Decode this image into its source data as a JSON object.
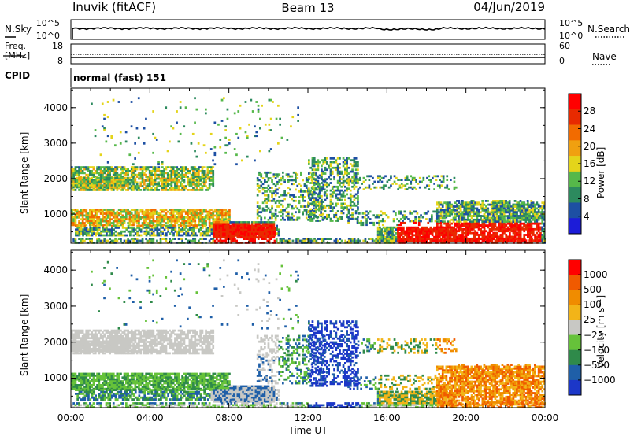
{
  "header": {
    "station": "Inuvik (fitACF)",
    "beam": "Beam 13",
    "date": "04/Jun/2019"
  },
  "nsky_panel": {
    "left_label": "N.Sky",
    "left_ticks": [
      "10^5",
      "10^0"
    ],
    "right_label": "N.Search",
    "right_ticks": [
      "10^5",
      "10^0"
    ]
  },
  "freq_panel": {
    "left_label_1": "Freq.",
    "left_label_2": "[MHz]",
    "left_ticks": [
      "18",
      "8"
    ],
    "right_label": "Nave",
    "right_ticks": [
      "60",
      "0"
    ]
  },
  "cpid": {
    "label": "CPID",
    "value": "normal (fast) 151"
  },
  "colors": {
    "power_scale": [
      "#1c1cd8",
      "#1d4fa3",
      "#2c8a5e",
      "#56b84a",
      "#e4d41a",
      "#f0a010",
      "#f26b00",
      "#e82a00",
      "#ff0000"
    ],
    "velocity_scale": [
      "#1c37c8",
      "#1f5fa8",
      "#2f8a4a",
      "#66c23a",
      "#c8c8c4",
      "#f2b418",
      "#f08c00",
      "#f05a00",
      "#ff0000"
    ]
  },
  "chart_data": [
    {
      "type": "heatmap",
      "title": "",
      "ylabel": "Slant Range [km]",
      "xlabel": "",
      "y_ticks": [
        "4000",
        "3000",
        "2000",
        "1000"
      ],
      "y_tick_values": [
        4000,
        3000,
        2000,
        1000
      ],
      "ylim": [
        180,
        4550
      ],
      "colorbar_label": "Power [dB]",
      "colorbar_ticks": [
        "4",
        "8",
        "12",
        "16",
        "20",
        "24",
        "28"
      ],
      "colorbar_range": [
        0,
        30
      ]
    },
    {
      "type": "heatmap",
      "title": "",
      "ylabel": "Slant Range [km]",
      "xlabel": "Time UT",
      "x_ticks": [
        "00:00",
        "04:00",
        "08:00",
        "12:00",
        "16:00",
        "20:00",
        "00:00"
      ],
      "y_ticks": [
        "4000",
        "3000",
        "2000",
        "1000"
      ],
      "y_tick_values": [
        4000,
        3000,
        2000,
        1000
      ],
      "ylim": [
        180,
        4550
      ],
      "colorbar_label": "Velocity [m s⁻¹]",
      "colorbar_ticks": [
        "1000",
        "500",
        "100",
        "25",
        "−25",
        "−100",
        "−500",
        "−1000"
      ],
      "colorbar_range": [
        -1000,
        1000
      ],
      "xlim": [
        0,
        24
      ]
    }
  ]
}
